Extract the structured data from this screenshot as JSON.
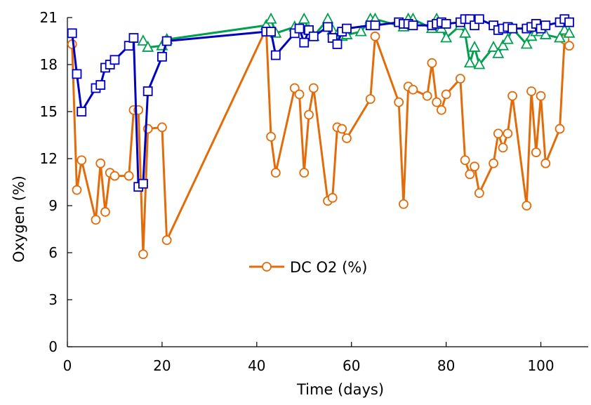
{
  "chart_data": {
    "type": "line",
    "title": "",
    "xlabel": "Time (days)",
    "ylabel": "Oxygen (%)",
    "xlim": [
      0,
      110
    ],
    "ylim": [
      0,
      21
    ],
    "xticks": [
      0,
      20,
      40,
      60,
      80,
      100
    ],
    "yticks": [
      0,
      3,
      6,
      9,
      12,
      15,
      18,
      21
    ],
    "grid": false,
    "legend": {
      "placement": "center",
      "entries": [
        "DC O2 (%)"
      ]
    },
    "series": [
      {
        "name": "DC O2 (%)",
        "color": "#E36C0A",
        "marker": "circle",
        "points": [
          [
            1,
            19.3
          ],
          [
            2,
            10.0
          ],
          [
            3,
            11.9
          ],
          [
            6,
            8.1
          ],
          [
            7,
            11.7
          ],
          [
            8,
            8.6
          ],
          [
            9,
            11.1
          ],
          [
            10,
            10.9
          ],
          [
            13,
            10.9
          ],
          [
            14,
            15.1
          ],
          [
            15,
            15.1
          ],
          [
            16,
            5.9
          ],
          [
            17,
            13.9
          ],
          [
            20,
            14.0
          ],
          [
            21,
            6.8
          ],
          [
            42,
            20.3
          ],
          [
            43,
            13.4
          ],
          [
            44,
            11.1
          ],
          [
            48,
            16.5
          ],
          [
            49,
            16.1
          ],
          [
            50,
            11.1
          ],
          [
            51,
            14.8
          ],
          [
            52,
            16.5
          ],
          [
            55,
            9.3
          ],
          [
            56,
            9.5
          ],
          [
            57,
            14.0
          ],
          [
            58,
            13.9
          ],
          [
            59,
            13.3
          ],
          [
            64,
            15.8
          ],
          [
            65,
            19.8
          ],
          [
            70,
            15.6
          ],
          [
            71,
            9.1
          ],
          [
            72,
            16.6
          ],
          [
            73,
            16.4
          ],
          [
            76,
            16.0
          ],
          [
            77,
            18.1
          ],
          [
            78,
            15.6
          ],
          [
            79,
            15.1
          ],
          [
            80,
            16.1
          ],
          [
            83,
            17.1
          ],
          [
            84,
            11.9
          ],
          [
            85,
            11.0
          ],
          [
            86,
            11.5
          ],
          [
            87,
            9.8
          ],
          [
            90,
            11.7
          ],
          [
            91,
            13.6
          ],
          [
            92,
            12.7
          ],
          [
            93,
            13.6
          ],
          [
            94,
            16.0
          ],
          [
            97,
            9.0
          ],
          [
            98,
            16.3
          ],
          [
            99,
            12.4
          ],
          [
            100,
            16.0
          ],
          [
            101,
            11.7
          ],
          [
            104,
            13.9
          ],
          [
            105,
            19.6
          ],
          [
            106,
            19.2
          ]
        ]
      },
      {
        "name": "",
        "color": "#0000C0",
        "marker": "square",
        "points": [
          [
            1,
            20.0
          ],
          [
            2,
            17.4
          ],
          [
            3,
            15.0
          ],
          [
            6,
            16.5
          ],
          [
            7,
            16.7
          ],
          [
            8,
            17.8
          ],
          [
            9,
            18.0
          ],
          [
            10,
            18.3
          ],
          [
            13,
            19.2
          ],
          [
            14,
            19.7
          ],
          [
            15,
            10.2
          ],
          [
            16,
            10.4
          ],
          [
            17,
            16.3
          ],
          [
            20,
            18.5
          ],
          [
            21,
            19.5
          ],
          [
            42,
            20.1
          ],
          [
            43,
            20.1
          ],
          [
            44,
            18.6
          ],
          [
            48,
            20.0
          ],
          [
            49,
            20.3
          ],
          [
            50,
            19.4
          ],
          [
            51,
            20.2
          ],
          [
            52,
            19.8
          ],
          [
            55,
            20.4
          ],
          [
            56,
            19.7
          ],
          [
            57,
            19.3
          ],
          [
            58,
            20.1
          ],
          [
            59,
            20.3
          ],
          [
            64,
            20.5
          ],
          [
            65,
            20.5
          ],
          [
            70,
            20.7
          ],
          [
            71,
            20.6
          ],
          [
            72,
            20.6
          ],
          [
            73,
            20.5
          ],
          [
            77,
            20.5
          ],
          [
            78,
            20.6
          ],
          [
            79,
            20.7
          ],
          [
            80,
            20.6
          ],
          [
            83,
            20.7
          ],
          [
            84,
            20.9
          ],
          [
            85,
            20.9
          ],
          [
            86,
            20.5
          ],
          [
            87,
            20.9
          ],
          [
            90,
            20.5
          ],
          [
            91,
            20.2
          ],
          [
            92,
            20.3
          ],
          [
            93,
            20.4
          ],
          [
            94,
            20.3
          ],
          [
            97,
            20.3
          ],
          [
            98,
            20.4
          ],
          [
            99,
            20.6
          ],
          [
            100,
            20.3
          ],
          [
            101,
            20.5
          ],
          [
            104,
            20.7
          ],
          [
            105,
            20.9
          ],
          [
            106,
            20.7
          ]
        ]
      },
      {
        "name": "",
        "color": "#00A050",
        "marker": "triangle",
        "points": [
          [
            16,
            19.5
          ],
          [
            17,
            19.1
          ],
          [
            20,
            19.2
          ],
          [
            21,
            19.6
          ],
          [
            42,
            20.5
          ],
          [
            43,
            20.9
          ],
          [
            44,
            20.0
          ],
          [
            48,
            20.4
          ],
          [
            49,
            20.3
          ],
          [
            50,
            20.9
          ],
          [
            51,
            20.2
          ],
          [
            52,
            19.8
          ],
          [
            55,
            20.9
          ],
          [
            56,
            20.2
          ],
          [
            57,
            19.9
          ],
          [
            58,
            19.8
          ],
          [
            59,
            19.9
          ],
          [
            62,
            20.1
          ],
          [
            64,
            20.9
          ],
          [
            65,
            20.9
          ],
          [
            71,
            20.4
          ],
          [
            72,
            20.9
          ],
          [
            73,
            20.9
          ],
          [
            77,
            20.3
          ],
          [
            78,
            20.9
          ],
          [
            79,
            20.3
          ],
          [
            80,
            19.7
          ],
          [
            83,
            20.5
          ],
          [
            84,
            20.0
          ],
          [
            85,
            18.1
          ],
          [
            86,
            19.1
          ],
          [
            87,
            18.0
          ],
          [
            90,
            19.1
          ],
          [
            91,
            18.7
          ],
          [
            92,
            19.2
          ],
          [
            93,
            19.6
          ],
          [
            94,
            20.3
          ],
          [
            97,
            19.3
          ],
          [
            98,
            19.8
          ],
          [
            99,
            20.1
          ],
          [
            100,
            20.1
          ],
          [
            101,
            19.9
          ],
          [
            104,
            19.7
          ],
          [
            105,
            20.2
          ],
          [
            106,
            20.0
          ]
        ]
      }
    ]
  }
}
